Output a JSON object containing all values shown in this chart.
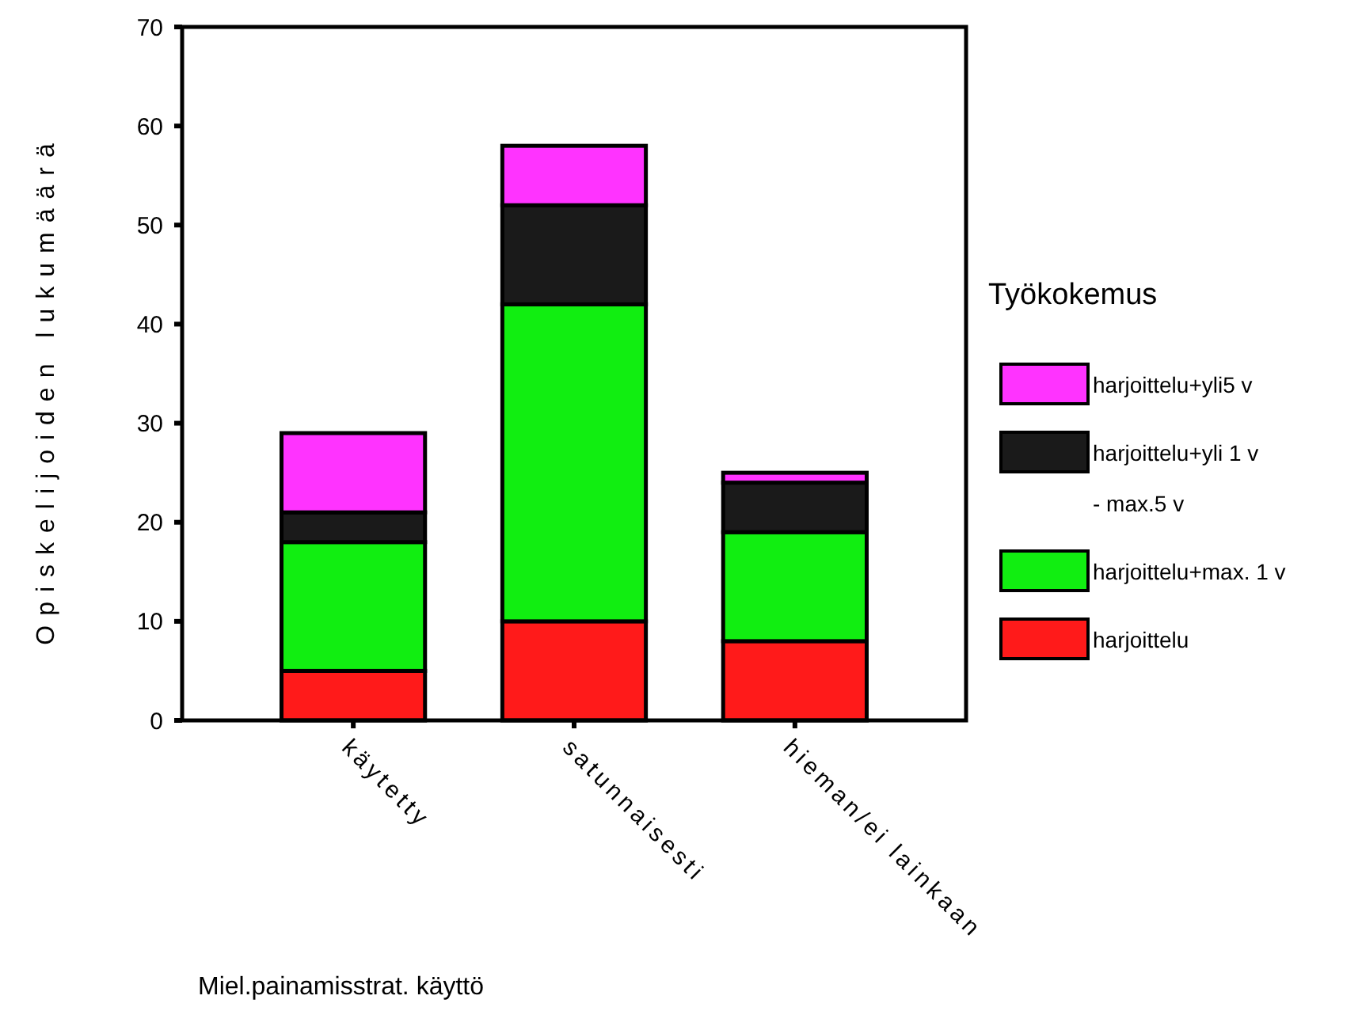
{
  "chart_data": {
    "type": "bar",
    "stacked": true,
    "xlabel": "Miel.painamisstrat. käyttö",
    "ylabel": "Opiskelijoiden lukumäärä",
    "legend_title": "Työkokemus",
    "legend": "right",
    "categories": [
      "käytetty",
      "satunnaisesti",
      "hieman/ei lainkaan"
    ],
    "series": [
      {
        "name": "harjoittelu",
        "color": "#ff1a1a",
        "values": [
          5,
          10,
          8
        ]
      },
      {
        "name": "harjoittelu+max. 1 v",
        "color": "#11ee11",
        "values": [
          13,
          32,
          11
        ]
      },
      {
        "name": "harjoittelu+yli 1 v - max.5 v",
        "color": "#1a1a1a",
        "values": [
          3,
          10,
          5
        ]
      },
      {
        "name": "harjoittelu+yli5 v",
        "color": "#ff33ff",
        "values": [
          8,
          6,
          1
        ]
      }
    ],
    "ylim": [
      0,
      70
    ],
    "yticks": [
      0,
      10,
      20,
      30,
      40,
      50,
      60,
      70
    ],
    "grid": false
  }
}
